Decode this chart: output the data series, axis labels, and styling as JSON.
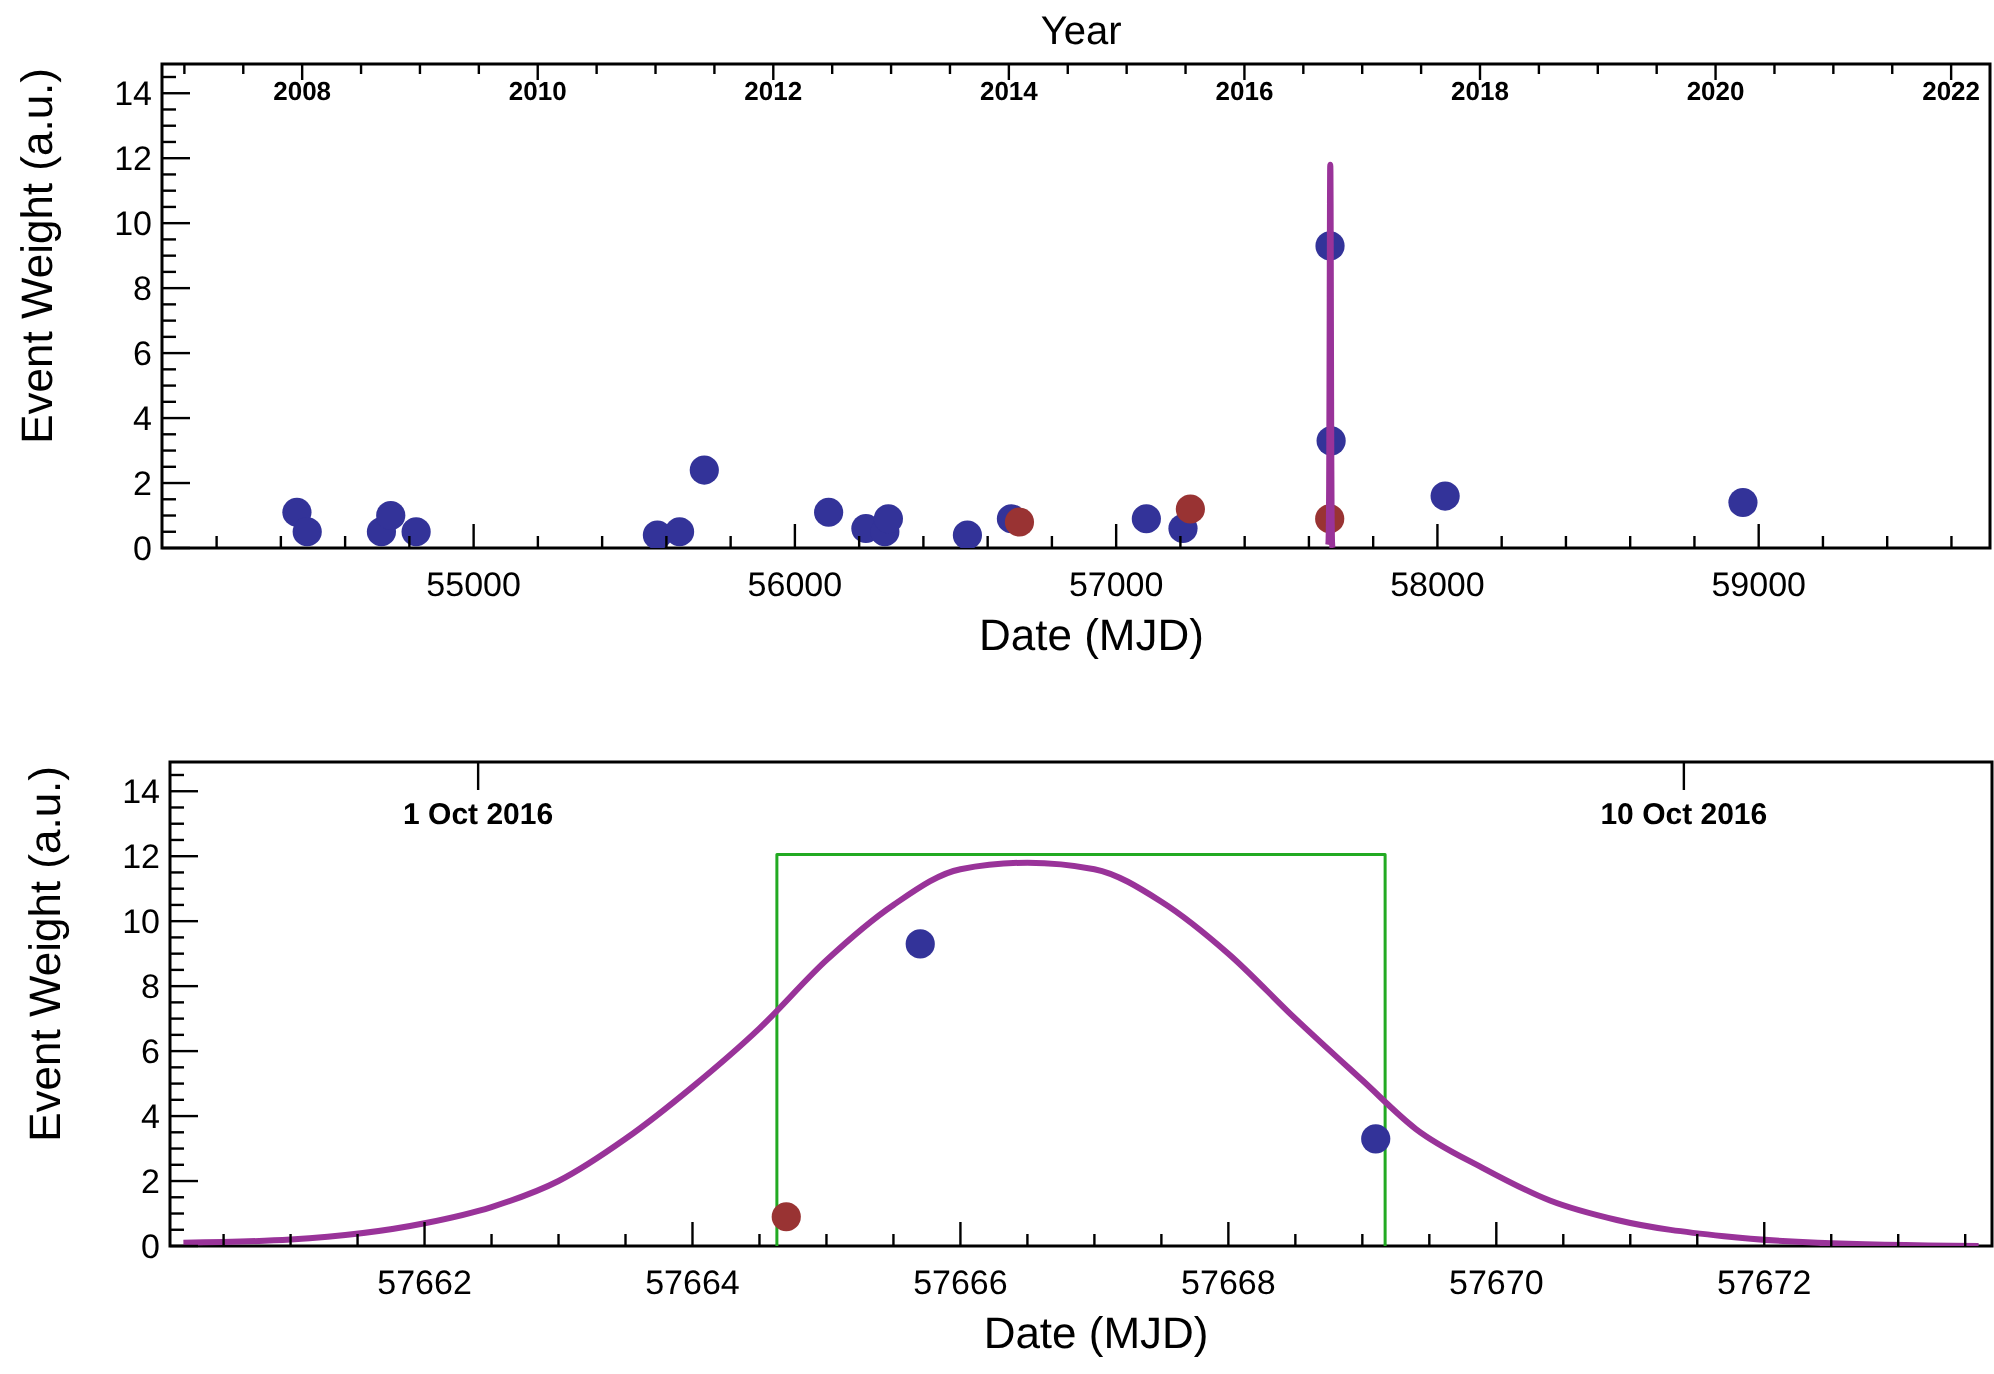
{
  "chart_data": [
    {
      "type": "scatter",
      "xlabel": "Date (MJD)",
      "ylabel": "Event Weight (a.u.)",
      "x2label": "Year",
      "xlim": [
        54030,
        59720
      ],
      "ylim": [
        0,
        14.9
      ],
      "x2lim": [
        2006.81,
        2022.33
      ],
      "xticks": [
        {
          "value": 54200,
          "label": null
        },
        {
          "value": 54400,
          "label": null
        },
        {
          "value": 54600,
          "label": null
        },
        {
          "value": 54800,
          "label": null
        },
        55000,
        {
          "value": 55200,
          "label": null
        },
        {
          "value": 55400,
          "label": null
        },
        {
          "value": 55600,
          "label": null
        },
        {
          "value": 55800,
          "label": null
        },
        56000,
        {
          "value": 56200,
          "label": null
        },
        {
          "value": 56400,
          "label": null
        },
        {
          "value": 56600,
          "label": null
        },
        {
          "value": 56800,
          "label": null
        },
        57000,
        {
          "value": 57200,
          "label": null
        },
        {
          "value": 57400,
          "label": null
        },
        {
          "value": 57600,
          "label": null
        },
        {
          "value": 57800,
          "label": null
        },
        58000,
        {
          "value": 58200,
          "label": null
        },
        {
          "value": 58400,
          "label": null
        },
        {
          "value": 58600,
          "label": null
        },
        {
          "value": 58800,
          "label": null
        },
        59000,
        {
          "value": 59200,
          "label": null
        },
        {
          "value": 59400,
          "label": null
        },
        {
          "value": 59600,
          "label": null
        }
      ],
      "yticks": [
        0,
        {
          "value": 0.5,
          "label": null
        },
        {
          "value": 1,
          "label": null
        },
        {
          "value": 1.5,
          "label": null
        },
        2,
        {
          "value": 2.5,
          "label": null
        },
        {
          "value": 3,
          "label": null
        },
        {
          "value": 3.5,
          "label": null
        },
        4,
        {
          "value": 4.5,
          "label": null
        },
        {
          "value": 5,
          "label": null
        },
        {
          "value": 5.5,
          "label": null
        },
        6,
        {
          "value": 6.5,
          "label": null
        },
        {
          "value": 7,
          "label": null
        },
        {
          "value": 7.5,
          "label": null
        },
        8,
        {
          "value": 8.5,
          "label": null
        },
        {
          "value": 9,
          "label": null
        },
        {
          "value": 9.5,
          "label": null
        },
        10,
        {
          "value": 10.5,
          "label": null
        },
        {
          "value": 11,
          "label": null
        },
        {
          "value": 11.5,
          "label": null
        },
        12,
        {
          "value": 12.5,
          "label": null
        },
        {
          "value": 13,
          "label": null
        },
        {
          "value": 13.5,
          "label": null
        },
        14,
        {
          "value": 14.5,
          "label": null
        }
      ],
      "x2ticks": [
        {
          "value": 2007,
          "label": null
        },
        {
          "value": 2007.5,
          "label": null
        },
        2008,
        {
          "value": 2008.5,
          "label": null
        },
        {
          "value": 2009,
          "label": null
        },
        {
          "value": 2009.5,
          "label": null
        },
        2010,
        {
          "value": 2010.5,
          "label": null
        },
        {
          "value": 2011,
          "label": null
        },
        {
          "value": 2011.5,
          "label": null
        },
        2012,
        {
          "value": 2012.5,
          "label": null
        },
        {
          "value": 2013,
          "label": null
        },
        {
          "value": 2013.5,
          "label": null
        },
        2014,
        {
          "value": 2014.5,
          "label": null
        },
        {
          "value": 2015,
          "label": null
        },
        {
          "value": 2015.5,
          "label": null
        },
        2016,
        {
          "value": 2016.5,
          "label": null
        },
        {
          "value": 2017,
          "label": null
        },
        {
          "value": 2017.5,
          "label": null
        },
        2018,
        {
          "value": 2018.5,
          "label": null
        },
        {
          "value": 2019,
          "label": null
        },
        {
          "value": 2019.5,
          "label": null
        },
        2020,
        {
          "value": 2020.5,
          "label": null
        },
        {
          "value": 2021,
          "label": null
        },
        {
          "value": 2021.5,
          "label": null
        },
        2022
      ],
      "series": [
        {
          "color": "#333399",
          "marker": "circle",
          "x": [
            54450,
            54482,
            54713,
            54742,
            54821,
            55572,
            55641,
            55718,
            56105,
            56221,
            56280,
            56291,
            56537,
            56674,
            57094,
            57208,
            57665.7,
            57669.1,
            58024,
            58951
          ],
          "values": [
            1.1,
            0.5,
            0.5,
            1,
            0.5,
            0.4,
            0.5,
            2.4,
            1.1,
            0.6,
            0.5,
            0.9,
            0.4,
            0.9,
            0.9,
            0.6,
            9.3,
            3.3,
            1.6,
            1.4
          ]
        },
        {
          "color": "#993333",
          "marker": "circle",
          "x": [
            56699,
            57231,
            57664.7
          ],
          "values": [
            0.8,
            1.2,
            0.9
          ]
        },
        {
          "type": "line",
          "color": "#993399",
          "x": [
            57660.2,
            57661,
            57662,
            57662.5,
            57663,
            57663.5,
            57664,
            57664.5,
            57665,
            57665.5,
            57666,
            57666.5,
            57667,
            57667.5,
            57668,
            57668.5,
            57669,
            57669.4,
            57669.9,
            57670.4,
            57670.9,
            57671.7,
            57672.4,
            57673.6
          ],
          "values": [
            0.1,
            0.2,
            0.7,
            1.2,
            2,
            3.3,
            4.9,
            6.7,
            8.8,
            10.5,
            11.6,
            11.8,
            11.6,
            10.6,
            9,
            7,
            5.1,
            3.6,
            2.4,
            1.4,
            0.8,
            0.3,
            0.1,
            0
          ]
        }
      ]
    },
    {
      "type": "scatter",
      "xlabel": "Date (MJD)",
      "ylabel": "Event Weight (a.u.)",
      "xlim": [
        57660.1,
        57673.7
      ],
      "ylim": [
        0,
        14.9
      ],
      "x2lim": [
        "2016-09-29T02:24",
        "2016-10-12T16:48"
      ],
      "xticks": [
        {
          "value": 57660.5,
          "label": null
        },
        {
          "value": 57661,
          "label": null
        },
        {
          "value": 57661.5,
          "label": null
        },
        57662,
        {
          "value": 57662.5,
          "label": null
        },
        {
          "value": 57663,
          "label": null
        },
        {
          "value": 57663.5,
          "label": null
        },
        57664,
        {
          "value": 57664.5,
          "label": null
        },
        {
          "value": 57665,
          "label": null
        },
        {
          "value": 57665.5,
          "label": null
        },
        57666,
        {
          "value": 57666.5,
          "label": null
        },
        {
          "value": 57667,
          "label": null
        },
        {
          "value": 57667.5,
          "label": null
        },
        57668,
        {
          "value": 57668.5,
          "label": null
        },
        {
          "value": 57669,
          "label": null
        },
        {
          "value": 57669.5,
          "label": null
        },
        57670,
        {
          "value": 57670.5,
          "label": null
        },
        {
          "value": 57671,
          "label": null
        },
        {
          "value": 57671.5,
          "label": null
        },
        57672,
        {
          "value": 57672.5,
          "label": null
        },
        {
          "value": 57673,
          "label": null
        },
        {
          "value": 57673.5,
          "label": null
        }
      ],
      "yticks": [
        0,
        {
          "value": 0.5,
          "label": null
        },
        {
          "value": 1,
          "label": null
        },
        {
          "value": 1.5,
          "label": null
        },
        2,
        {
          "value": 2.5,
          "label": null
        },
        {
          "value": 3,
          "label": null
        },
        {
          "value": 3.5,
          "label": null
        },
        4,
        {
          "value": 4.5,
          "label": null
        },
        {
          "value": 5,
          "label": null
        },
        {
          "value": 5.5,
          "label": null
        },
        6,
        {
          "value": 6.5,
          "label": null
        },
        {
          "value": 7,
          "label": null
        },
        {
          "value": 7.5,
          "label": null
        },
        8,
        {
          "value": 8.5,
          "label": null
        },
        {
          "value": 9,
          "label": null
        },
        {
          "value": 9.5,
          "label": null
        },
        10,
        {
          "value": 10.5,
          "label": null
        },
        {
          "value": 11,
          "label": null
        },
        {
          "value": 11.5,
          "label": null
        },
        12,
        {
          "value": 12.5,
          "label": null
        },
        {
          "value": 13,
          "label": null
        },
        {
          "value": 13.5,
          "label": null
        },
        14,
        {
          "value": 14.5,
          "label": null
        }
      ],
      "x2ticks": [
        {
          "value": "2016-10-01T09:36",
          "label": "1 Oct 2016"
        },
        {
          "value": "2016-10-10T09:36",
          "label": "10 Oct 2016"
        }
      ],
      "series": [
        {
          "type": "line",
          "color": "#22aa22",
          "x": [
            57664.63,
            57664.63,
            57669.17,
            57669.17
          ],
          "values": [
            0,
            12.05,
            12.05,
            0
          ]
        },
        {
          "type": "line",
          "color": "#993399",
          "x": [
            57660.2,
            57661,
            57662,
            57662.5,
            57663,
            57663.5,
            57664,
            57664.5,
            57665,
            57665.5,
            57666,
            57666.5,
            57667,
            57667.5,
            57668,
            57668.5,
            57669,
            57669.4,
            57669.9,
            57670.4,
            57670.9,
            57671.7,
            57672.4,
            57673.6
          ],
          "values": [
            0.1,
            0.2,
            0.7,
            1.2,
            2,
            3.3,
            4.9,
            6.7,
            8.8,
            10.5,
            11.6,
            11.8,
            11.6,
            10.6,
            9,
            7,
            5.1,
            3.6,
            2.4,
            1.4,
            0.8,
            0.3,
            0.1,
            0
          ]
        },
        {
          "color": "#333399",
          "marker": "circle",
          "x": [
            57665.7,
            57669.1
          ],
          "values": [
            9.3,
            3.3
          ]
        },
        {
          "color": "#993333",
          "marker": "circle",
          "x": [
            57664.7
          ],
          "values": [
            0.9
          ]
        }
      ]
    }
  ]
}
